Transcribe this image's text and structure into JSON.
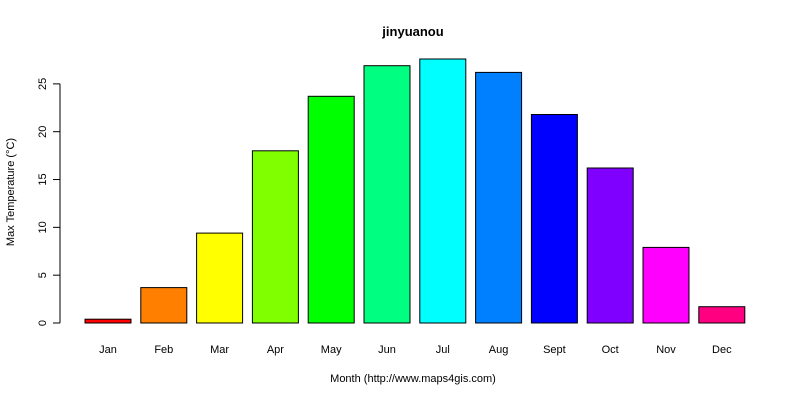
{
  "chart_data": {
    "type": "bar",
    "title": "jinyuanou",
    "xlabel": "Month (http://www.maps4gis.com)",
    "ylabel": "Max Temperature (°C)",
    "categories": [
      "Jan",
      "Feb",
      "Mar",
      "Apr",
      "May",
      "Jun",
      "Jul",
      "Aug",
      "Sept",
      "Oct",
      "Nov",
      "Dec"
    ],
    "values": [
      0.4,
      3.7,
      9.4,
      18.0,
      23.7,
      26.9,
      27.6,
      26.2,
      21.8,
      16.2,
      7.9,
      1.7
    ],
    "colors": [
      "#FF0000",
      "#FF8000",
      "#FFFF00",
      "#80FF00",
      "#00FF00",
      "#00FF80",
      "#00FFFF",
      "#0080FF",
      "#0000FF",
      "#8000FF",
      "#FF00FF",
      "#FF0080"
    ],
    "yticks": [
      0,
      5,
      10,
      15,
      20,
      25
    ],
    "ylim": [
      0,
      27.6
    ],
    "grid": false,
    "legend": "none"
  }
}
